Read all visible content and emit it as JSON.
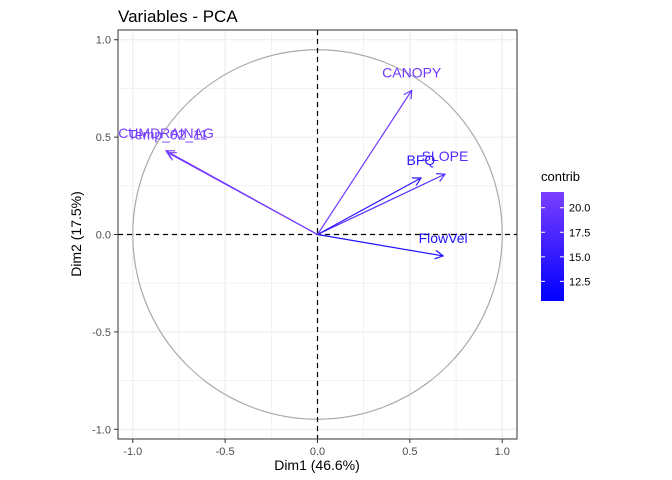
{
  "chart_data": {
    "type": "scatter",
    "subtype": "pca-variables-correlation-circle",
    "title": "Variables - PCA",
    "xlabel": "Dim1 (46.6%)",
    "ylabel": "Dim2 (17.5%)",
    "xlim": [
      -1.08,
      1.08
    ],
    "ylim": [
      -1.05,
      1.05
    ],
    "xticks": [
      -1.0,
      -0.5,
      0.0,
      0.5,
      1.0
    ],
    "yticks": [
      -1.0,
      -0.5,
      0.0,
      0.5,
      1.0
    ],
    "xtick_labels": [
      "-1.0",
      "-0.5",
      "0.0",
      "0.5",
      "1.0"
    ],
    "ytick_labels": [
      "-1.0",
      "-0.5",
      "0.0",
      "0.5",
      "1.0"
    ],
    "grid": true,
    "unit_circle": true,
    "zero_lines": true,
    "series": [
      {
        "name": "CANOPY",
        "x": 0.51,
        "y": 0.74,
        "contrib": 20.5
      },
      {
        "name": "SLOPE",
        "x": 0.69,
        "y": 0.31,
        "contrib": 18.2
      },
      {
        "name": "BFQ",
        "x": 0.56,
        "y": 0.29,
        "contrib": 14.5
      },
      {
        "name": "FlowVel",
        "x": 0.68,
        "y": -0.11,
        "contrib": 13.5
      },
      {
        "name": "CUMDRAINAG",
        "x": -0.82,
        "y": 0.43,
        "contrib": 21.3
      },
      {
        "name": "Temp_02_11",
        "x": -0.81,
        "y": 0.42,
        "contrib": 21.0
      }
    ],
    "colors": {
      "low": "#0000ff",
      "high": "#7b3fff",
      "circle": "#aaaaaa",
      "grid": "#ebebeb",
      "panel_border": "#333333"
    },
    "legend": {
      "title": "contrib",
      "position": "right",
      "range": [
        10.5,
        21.6
      ],
      "ticks": [
        12.5,
        15.0,
        17.5,
        20.0
      ],
      "tick_labels": [
        "12.5",
        "15.0",
        "17.5",
        "20.0"
      ]
    }
  }
}
